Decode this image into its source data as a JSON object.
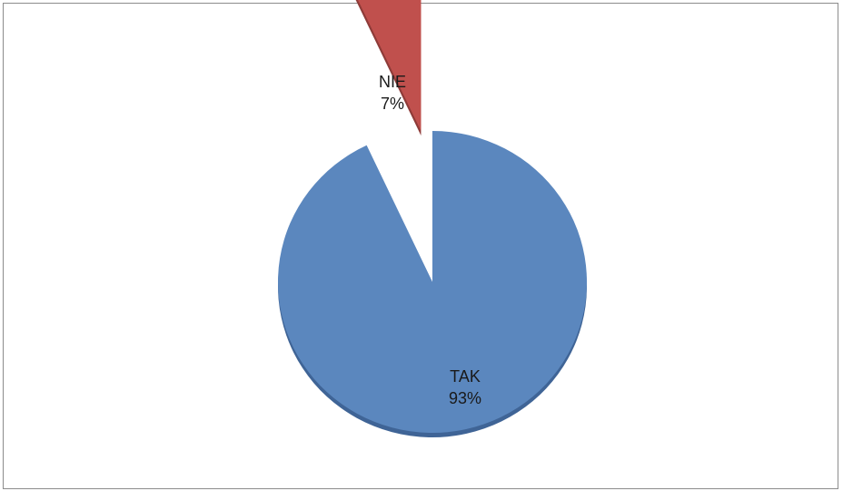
{
  "chart_data": {
    "type": "pie",
    "style": "3d-exploded",
    "categories": [
      "TAK",
      "NIE"
    ],
    "values": [
      93,
      7
    ],
    "value_labels": [
      "93%",
      "7%"
    ],
    "colors": [
      "#5b87be",
      "#c0504d"
    ],
    "shadow_colors": [
      "#3f6496",
      "#8e3b38"
    ],
    "exploded": [
      "NIE"
    ],
    "legend": "none"
  }
}
